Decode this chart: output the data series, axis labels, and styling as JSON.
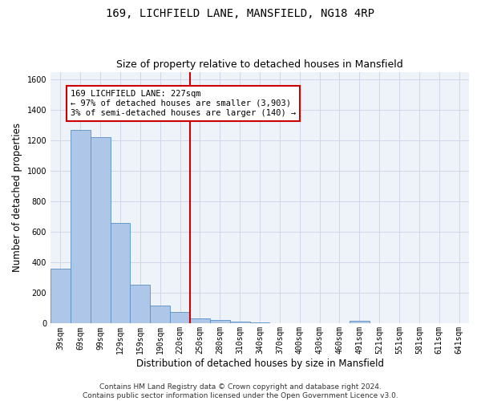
{
  "title": "169, LICHFIELD LANE, MANSFIELD, NG18 4RP",
  "subtitle": "Size of property relative to detached houses in Mansfield",
  "xlabel": "Distribution of detached houses by size in Mansfield",
  "ylabel": "Number of detached properties",
  "categories": [
    "39sqm",
    "69sqm",
    "99sqm",
    "129sqm",
    "159sqm",
    "190sqm",
    "220sqm",
    "250sqm",
    "280sqm",
    "310sqm",
    "340sqm",
    "370sqm",
    "400sqm",
    "430sqm",
    "460sqm",
    "491sqm",
    "521sqm",
    "551sqm",
    "581sqm",
    "611sqm",
    "641sqm"
  ],
  "values": [
    360,
    1270,
    1220,
    660,
    255,
    120,
    75,
    35,
    25,
    15,
    5,
    0,
    0,
    0,
    0,
    20,
    0,
    0,
    0,
    0,
    0
  ],
  "bar_color": "#aec6e8",
  "bar_edge_color": "#5a8fc2",
  "vline_x": 6.5,
  "vline_color": "#cc0000",
  "annotation_text": "169 LICHFIELD LANE: 227sqm\n← 97% of detached houses are smaller (3,903)\n3% of semi-detached houses are larger (140) →",
  "annotation_box_color": "#ffffff",
  "annotation_box_edge_color": "#cc0000",
  "ylim": [
    0,
    1650
  ],
  "yticks": [
    0,
    200,
    400,
    600,
    800,
    1000,
    1200,
    1400,
    1600
  ],
  "grid_color": "#d0d8e8",
  "background_color": "#eef2f9",
  "footer_text": "Contains HM Land Registry data © Crown copyright and database right 2024.\nContains public sector information licensed under the Open Government Licence v3.0.",
  "title_fontsize": 10,
  "subtitle_fontsize": 9,
  "label_fontsize": 8.5,
  "tick_fontsize": 7,
  "footer_fontsize": 6.5,
  "annot_fontsize": 7.5
}
